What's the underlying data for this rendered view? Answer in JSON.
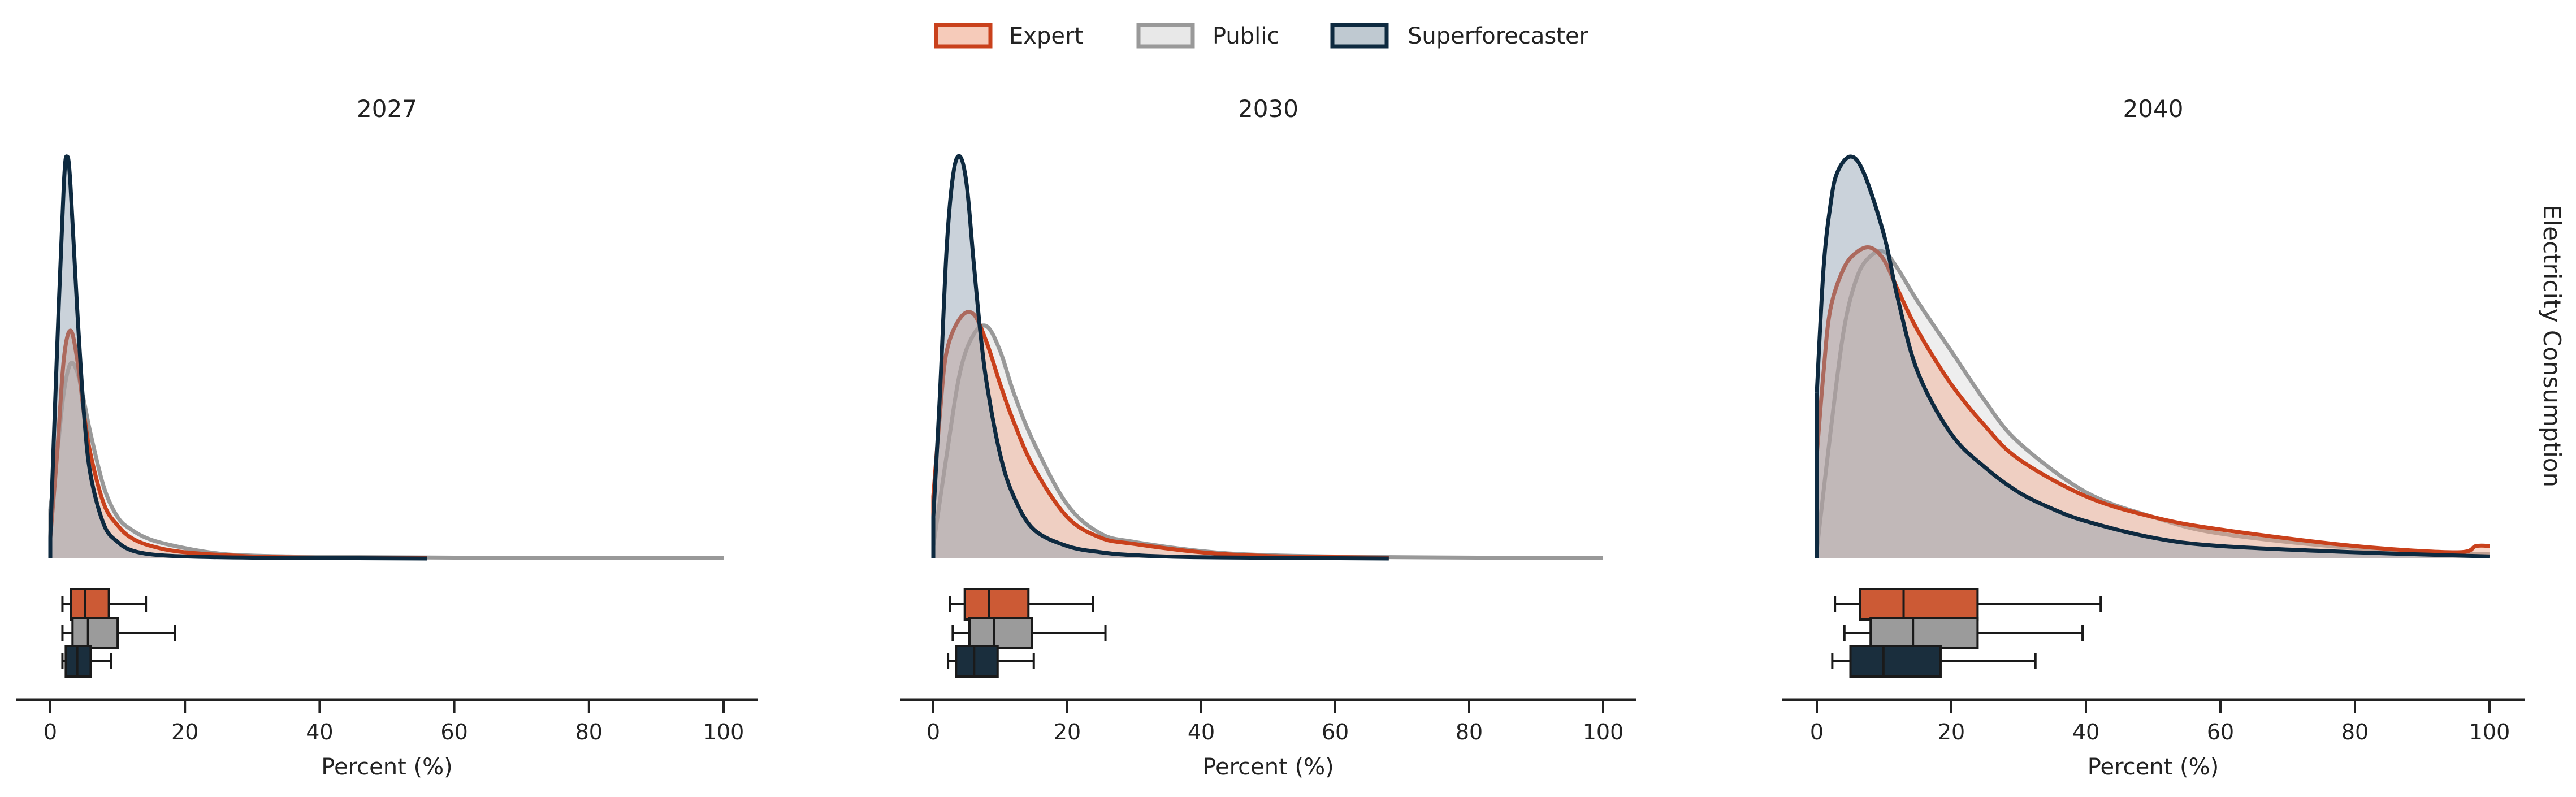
{
  "chart_data": {
    "type": "density-with-boxplot",
    "legend": {
      "placement": "top-center",
      "entries": [
        "Expert",
        "Public",
        "Superforecaster"
      ]
    },
    "row_label": "Electricity Consumption",
    "colors": {
      "Expert": {
        "line": "#c9411c",
        "fill": "#f0a98c",
        "box": "#cc5a35"
      },
      "Public": {
        "line": "#999999",
        "fill": "#d9d9d9",
        "box": "#9b9b9b"
      },
      "Superforecaster": {
        "line": "#0e2a40",
        "fill": "#8a9cac",
        "box": "#1a2e3d"
      }
    },
    "xlim": [
      0,
      100
    ],
    "xticks": [
      0,
      20,
      40,
      60,
      80,
      100
    ],
    "xlabel": "Percent (%)",
    "panels": [
      {
        "title": "2027",
        "density": {
          "Expert": [
            [
              0,
              0.05
            ],
            [
              1,
              0.25
            ],
            [
              2,
              0.48
            ],
            [
              3,
              0.55
            ],
            [
              4,
              0.48
            ],
            [
              5,
              0.35
            ],
            [
              6,
              0.25
            ],
            [
              8,
              0.13
            ],
            [
              10,
              0.08
            ],
            [
              12,
              0.05
            ],
            [
              15,
              0.03
            ],
            [
              20,
              0.015
            ],
            [
              30,
              0.005
            ],
            [
              40,
              0.002
            ],
            [
              56,
              0.001
            ]
          ],
          "Public": [
            [
              0,
              0.12
            ],
            [
              1,
              0.25
            ],
            [
              2,
              0.4
            ],
            [
              3,
              0.47
            ],
            [
              4,
              0.45
            ],
            [
              5,
              0.38
            ],
            [
              6,
              0.3
            ],
            [
              8,
              0.17
            ],
            [
              10,
              0.1
            ],
            [
              12,
              0.07
            ],
            [
              15,
              0.045
            ],
            [
              20,
              0.025
            ],
            [
              25,
              0.012
            ],
            [
              30,
              0.007
            ],
            [
              40,
              0.004
            ],
            [
              60,
              0.002
            ],
            [
              100,
              0.001
            ]
          ],
          "Superforecaster": [
            [
              0,
              0.05
            ],
            [
              1,
              0.5
            ],
            [
              2,
              0.9
            ],
            [
              2.5,
              0.97
            ],
            [
              3,
              0.9
            ],
            [
              4,
              0.6
            ],
            [
              5,
              0.35
            ],
            [
              6,
              0.2
            ],
            [
              8,
              0.08
            ],
            [
              10,
              0.04
            ],
            [
              12,
              0.02
            ],
            [
              15,
              0.01
            ],
            [
              20,
              0.005
            ],
            [
              30,
              0.002
            ],
            [
              56,
              0
            ]
          ]
        },
        "boxplot": {
          "Expert": {
            "whislo": 1.8,
            "q1": 3.1,
            "med": 5.2,
            "q3": 8.7,
            "whishi": 14.2
          },
          "Public": {
            "whislo": 1.8,
            "q1": 3.3,
            "med": 5.6,
            "q3": 10.0,
            "whishi": 18.5
          },
          "Superforecaster": {
            "whislo": 1.8,
            "q1": 2.3,
            "med": 4.0,
            "q3": 6.0,
            "whishi": 9.0
          }
        }
      },
      {
        "title": "2030",
        "density": {
          "Expert": [
            [
              0,
              0.15
            ],
            [
              1,
              0.35
            ],
            [
              2,
              0.5
            ],
            [
              4,
              0.58
            ],
            [
              6,
              0.59
            ],
            [
              8,
              0.52
            ],
            [
              10,
              0.42
            ],
            [
              12,
              0.33
            ],
            [
              15,
              0.22
            ],
            [
              20,
              0.1
            ],
            [
              25,
              0.05
            ],
            [
              30,
              0.035
            ],
            [
              40,
              0.015
            ],
            [
              50,
              0.006
            ],
            [
              68,
              0.002
            ]
          ],
          "Public": [
            [
              0,
              0.03
            ],
            [
              2,
              0.25
            ],
            [
              4,
              0.45
            ],
            [
              6,
              0.54
            ],
            [
              8,
              0.56
            ],
            [
              10,
              0.5
            ],
            [
              12,
              0.4
            ],
            [
              15,
              0.28
            ],
            [
              20,
              0.13
            ],
            [
              25,
              0.06
            ],
            [
              30,
              0.04
            ],
            [
              40,
              0.018
            ],
            [
              50,
              0.008
            ],
            [
              70,
              0.003
            ],
            [
              100,
              0.001
            ]
          ],
          "Superforecaster": [
            [
              0,
              0.1
            ],
            [
              1,
              0.4
            ],
            [
              2,
              0.75
            ],
            [
              3,
              0.93
            ],
            [
              4,
              0.97
            ],
            [
              5,
              0.9
            ],
            [
              6,
              0.72
            ],
            [
              7,
              0.55
            ],
            [
              8,
              0.42
            ],
            [
              10,
              0.25
            ],
            [
              12,
              0.15
            ],
            [
              15,
              0.07
            ],
            [
              20,
              0.03
            ],
            [
              25,
              0.015
            ],
            [
              30,
              0.008
            ],
            [
              40,
              0.003
            ],
            [
              68,
              0
            ]
          ]
        },
        "boxplot": {
          "Expert": {
            "whislo": 2.5,
            "q1": 4.7,
            "med": 8.3,
            "q3": 14.2,
            "whishi": 23.8
          },
          "Public": {
            "whislo": 2.9,
            "q1": 5.4,
            "med": 9.1,
            "q3": 14.7,
            "whishi": 25.7
          },
          "Superforecaster": {
            "whislo": 2.2,
            "q1": 3.4,
            "med": 6.1,
            "q3": 9.6,
            "whishi": 15.0
          }
        }
      },
      {
        "title": "2040",
        "density": {
          "Expert": [
            [
              0,
              0.25
            ],
            [
              1,
              0.45
            ],
            [
              2,
              0.6
            ],
            [
              4,
              0.7
            ],
            [
              6,
              0.74
            ],
            [
              8,
              0.75
            ],
            [
              10,
              0.72
            ],
            [
              12,
              0.65
            ],
            [
              15,
              0.55
            ],
            [
              20,
              0.42
            ],
            [
              25,
              0.32
            ],
            [
              30,
              0.24
            ],
            [
              40,
              0.15
            ],
            [
              50,
              0.1
            ],
            [
              60,
              0.07
            ],
            [
              80,
              0.03
            ],
            [
              95,
              0.015
            ],
            [
              98,
              0.03
            ],
            [
              100,
              0.03
            ]
          ],
          "Public": [
            [
              0,
              0.02
            ],
            [
              2,
              0.3
            ],
            [
              4,
              0.55
            ],
            [
              6,
              0.68
            ],
            [
              8,
              0.73
            ],
            [
              10,
              0.74
            ],
            [
              12,
              0.7
            ],
            [
              15,
              0.62
            ],
            [
              20,
              0.5
            ],
            [
              25,
              0.38
            ],
            [
              30,
              0.28
            ],
            [
              40,
              0.16
            ],
            [
              50,
              0.1
            ],
            [
              60,
              0.06
            ],
            [
              80,
              0.025
            ],
            [
              100,
              0.01
            ]
          ],
          "Superforecaster": [
            [
              0,
              0.4
            ],
            [
              1,
              0.7
            ],
            [
              2,
              0.85
            ],
            [
              3,
              0.93
            ],
            [
              5,
              0.97
            ],
            [
              7,
              0.93
            ],
            [
              10,
              0.78
            ],
            [
              12,
              0.63
            ],
            [
              15,
              0.45
            ],
            [
              20,
              0.3
            ],
            [
              25,
              0.22
            ],
            [
              30,
              0.16
            ],
            [
              35,
              0.12
            ],
            [
              40,
              0.09
            ],
            [
              50,
              0.05
            ],
            [
              60,
              0.03
            ],
            [
              80,
              0.015
            ],
            [
              100,
              0.005
            ]
          ]
        },
        "boxplot": {
          "Expert": {
            "whislo": 2.7,
            "q1": 6.4,
            "med": 12.9,
            "q3": 23.9,
            "whishi": 42.2
          },
          "Public": {
            "whislo": 4.1,
            "q1": 8.0,
            "med": 14.3,
            "q3": 23.9,
            "whishi": 39.5
          },
          "Superforecaster": {
            "whislo": 2.3,
            "q1": 5.0,
            "med": 9.9,
            "q3": 18.4,
            "whishi": 32.5
          }
        }
      }
    ]
  }
}
